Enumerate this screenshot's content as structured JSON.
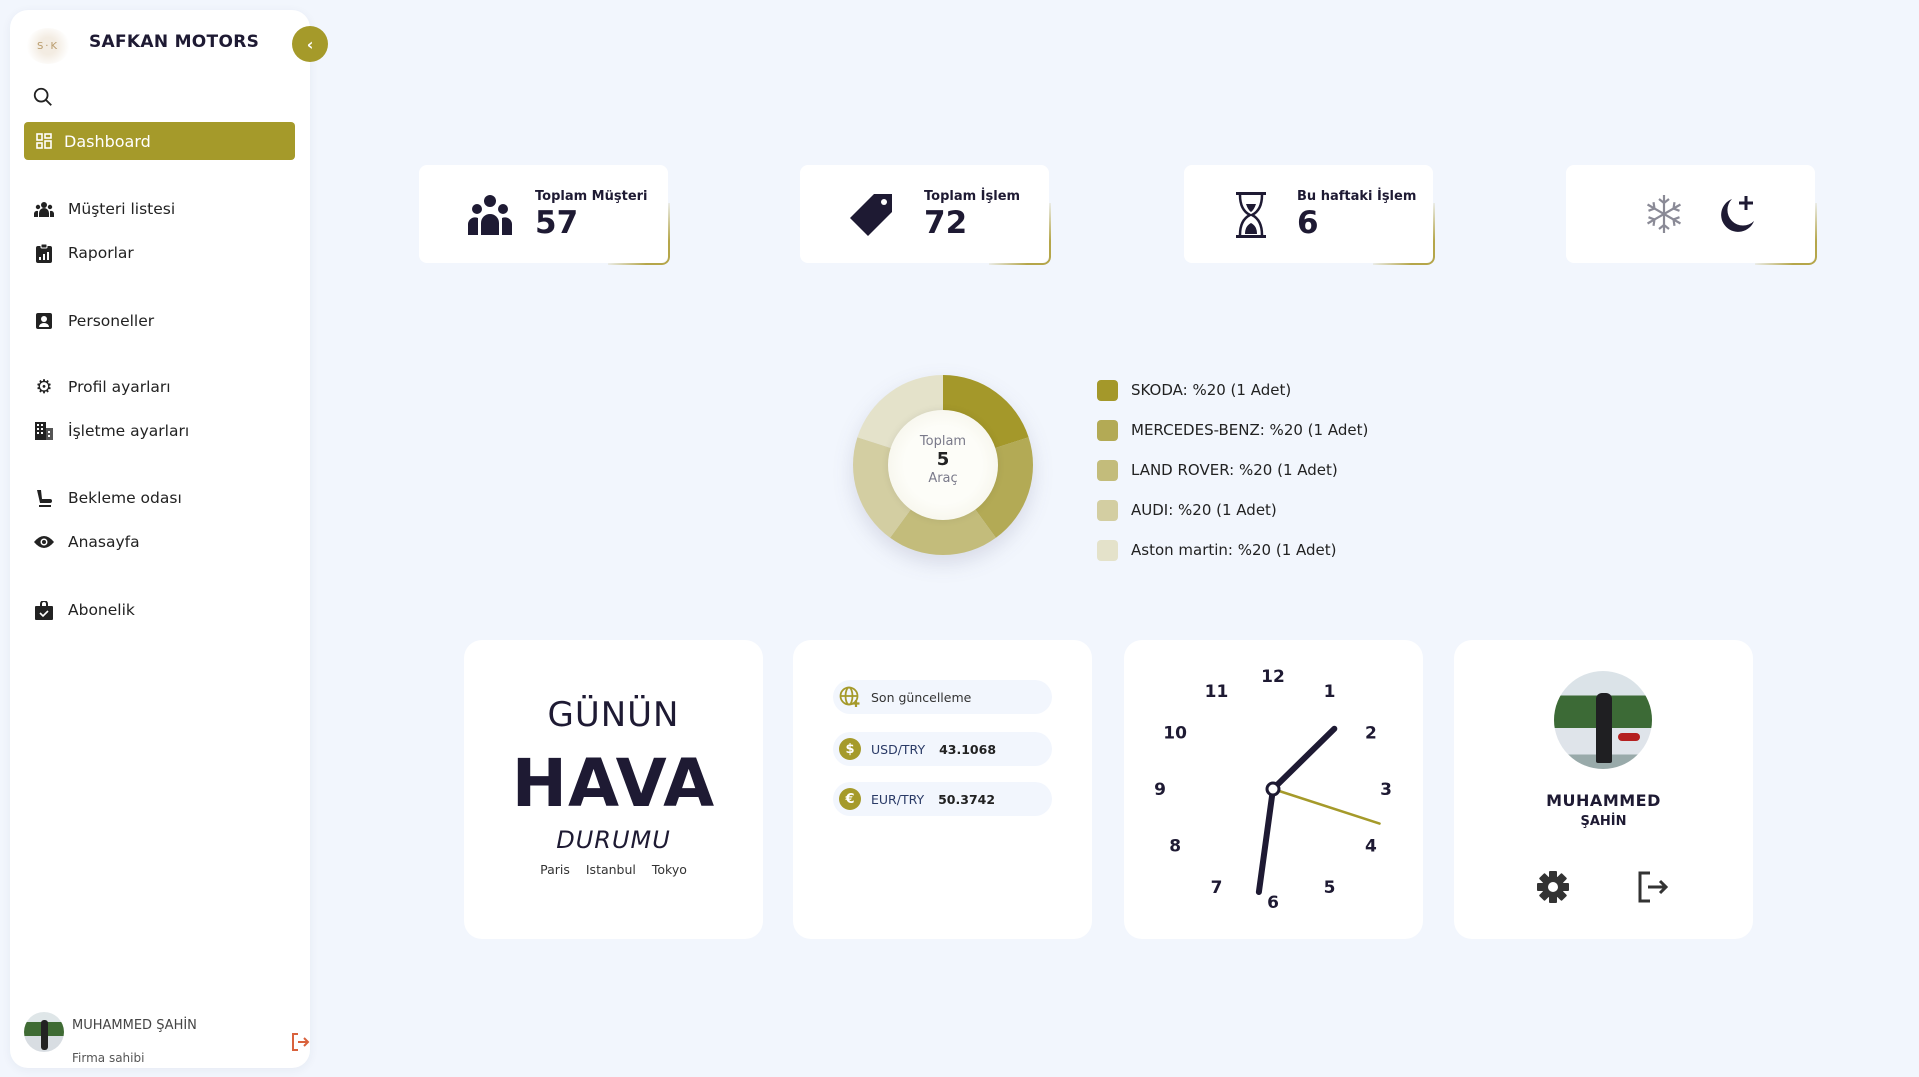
{
  "brand": {
    "name": "SAFKAN MOTORS",
    "logo_text": "S·F·K"
  },
  "sidebar": {
    "active": {
      "label": "Dashboard",
      "icon": "grid-icon"
    },
    "items": [
      {
        "label": "Müşteri listesi",
        "icon": "users-icon"
      },
      {
        "label": "Raporlar",
        "icon": "report-icon"
      },
      {
        "label": "Personeller",
        "icon": "id-card-icon"
      },
      {
        "label": "Profil ayarları",
        "icon": "gear-icon"
      },
      {
        "label": "İşletme ayarları",
        "icon": "building-icon"
      },
      {
        "label": "Bekleme odası",
        "icon": "seat-icon"
      },
      {
        "label": "Anasayfa",
        "icon": "eye-icon"
      },
      {
        "label": "Abonelik",
        "icon": "shopping-bag-icon"
      }
    ],
    "user": {
      "name": "MUHAMMED ŞAHİN",
      "role": "Firma sahibi"
    }
  },
  "stats": [
    {
      "label": "Toplam Müşteri",
      "value": "57",
      "icon": "users-icon"
    },
    {
      "label": "Toplam İşlem",
      "value": "72",
      "icon": "tag-icon"
    },
    {
      "label": "Bu haftaki İşlem",
      "value": "6",
      "icon": "hourglass-icon"
    }
  ],
  "theme_icons": [
    "snowflake-icon",
    "moon-plus-icon"
  ],
  "chart_data": {
    "type": "pie",
    "center_label": {
      "top": "Toplam",
      "value": "5",
      "bottom": "Araç"
    },
    "categories": [
      "SKODA",
      "MERCEDES-BENZ",
      "LAND ROVER",
      "AUDI",
      "Aston martin"
    ],
    "values": [
      1,
      1,
      1,
      1,
      1
    ],
    "legend": [
      "SKODA: %20 (1 Adet)",
      "MERCEDES-BENZ: %20 (1 Adet)",
      "LAND ROVER: %20 (1 Adet)",
      "AUDI: %20 (1 Adet)",
      "Aston martin: %20 (1 Adet)"
    ],
    "colors": [
      "#a4982a",
      "#b3aa55",
      "#c3bc7b",
      "#d3cea2",
      "#e4e2ca"
    ],
    "legend_placement": "right"
  },
  "weather": {
    "line1": "GÜNÜN",
    "line2": "HAVA",
    "line3": "DURUMU",
    "cities": [
      "Paris",
      "Istanbul",
      "Tokyo"
    ]
  },
  "currency": {
    "updated": "Son güncelleme",
    "rows": [
      {
        "pair": "USD/TRY",
        "value": "43.1068",
        "symbol": "$"
      },
      {
        "pair": "EUR/TRY",
        "value": "50.3742",
        "symbol": "€"
      }
    ]
  },
  "clock": {
    "numbers": [
      "12",
      "1",
      "2",
      "3",
      "4",
      "5",
      "6",
      "7",
      "8",
      "9",
      "10",
      "11"
    ],
    "hour": 1,
    "minute": 31,
    "second": 18
  },
  "profile": {
    "first": "MUHAMMED",
    "last": "ŞAHİN"
  },
  "colors": {
    "accent": "#a59a2a",
    "background": "#f2f6fd",
    "text": "#1e1a33",
    "logout": "#d9623d"
  }
}
